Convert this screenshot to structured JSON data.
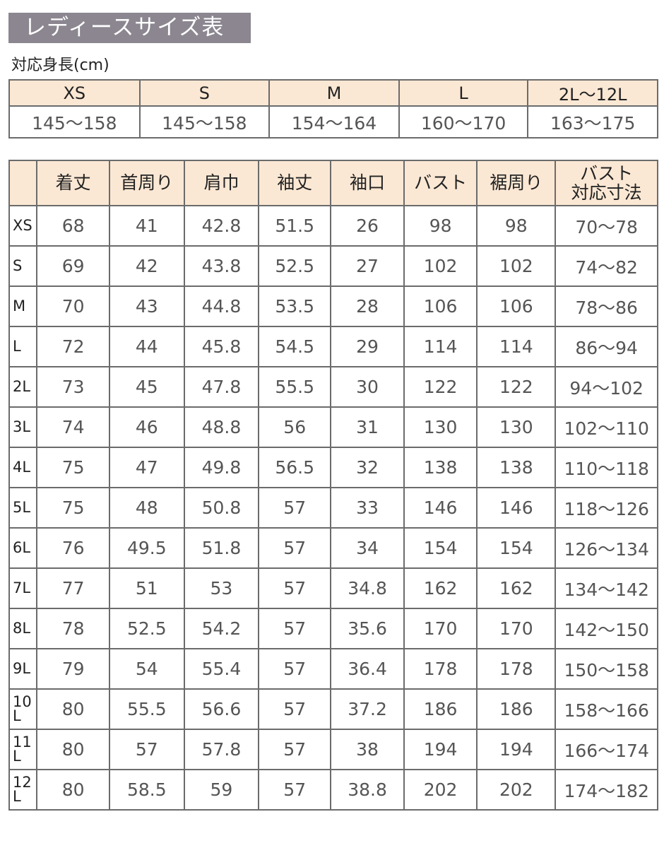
{
  "title": "レディースサイズ表",
  "height_heading": "対応身長(cm)",
  "height_table": {
    "sizes": [
      "XS",
      "S",
      "M",
      "L",
      "2L〜12L"
    ],
    "ranges": [
      "145〜158",
      "145〜158",
      "154〜164",
      "160〜170",
      "163〜175"
    ]
  },
  "size_table": {
    "headers": [
      "",
      "着丈",
      "首周り",
      "肩巾",
      "袖丈",
      "袖口",
      "バスト",
      "裾周り",
      "バスト\n対応寸法"
    ],
    "rows": [
      [
        "XS",
        "68",
        "41",
        "42.8",
        "51.5",
        "26",
        "98",
        "98",
        "70〜78"
      ],
      [
        "S",
        "69",
        "42",
        "43.8",
        "52.5",
        "27",
        "102",
        "102",
        "74〜82"
      ],
      [
        "M",
        "70",
        "43",
        "44.8",
        "53.5",
        "28",
        "106",
        "106",
        "78〜86"
      ],
      [
        "L",
        "72",
        "44",
        "45.8",
        "54.5",
        "29",
        "114",
        "114",
        "86〜94"
      ],
      [
        "2L",
        "73",
        "45",
        "47.8",
        "55.5",
        "30",
        "122",
        "122",
        "94〜102"
      ],
      [
        "3L",
        "74",
        "46",
        "48.8",
        "56",
        "31",
        "130",
        "130",
        "102〜110"
      ],
      [
        "4L",
        "75",
        "47",
        "49.8",
        "56.5",
        "32",
        "138",
        "138",
        "110〜118"
      ],
      [
        "5L",
        "75",
        "48",
        "50.8",
        "57",
        "33",
        "146",
        "146",
        "118〜126"
      ],
      [
        "6L",
        "76",
        "49.5",
        "51.8",
        "57",
        "34",
        "154",
        "154",
        "126〜134"
      ],
      [
        "7L",
        "77",
        "51",
        "53",
        "57",
        "34.8",
        "162",
        "162",
        "134〜142"
      ],
      [
        "8L",
        "78",
        "52.5",
        "54.2",
        "57",
        "35.6",
        "170",
        "170",
        "142〜150"
      ],
      [
        "9L",
        "79",
        "54",
        "55.4",
        "57",
        "36.4",
        "178",
        "178",
        "150〜158"
      ],
      [
        "10L",
        "80",
        "55.5",
        "56.6",
        "57",
        "37.2",
        "186",
        "186",
        "158〜166"
      ],
      [
        "11L",
        "80",
        "57",
        "57.8",
        "57",
        "38",
        "194",
        "194",
        "166〜174"
      ],
      [
        "12L",
        "80",
        "58.5",
        "59",
        "57",
        "38.8",
        "202",
        "202",
        "174〜182"
      ]
    ]
  },
  "colors": {
    "title_bg": "#8b8690",
    "header_bg": "#fbe8d4"
  }
}
